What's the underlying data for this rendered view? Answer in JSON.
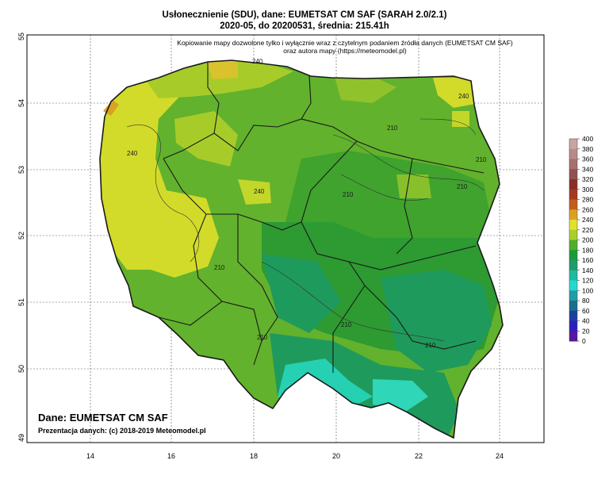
{
  "title": {
    "line1": "Usłonecznienie (SDU), dane: EUMETSAT CM SAF (SARAH 2.0/2.1)",
    "line2": "2020-05, do 20200531, średnia: 215.41h"
  },
  "notice": {
    "line1": "Kopiowanie mapy dozwolone tylko i wyłącznie wraz z czytelnym podaniem źródła danych (EUMETSAT CM SAF)",
    "line2": "oraz autora mapy (https://meteomodel.pl)"
  },
  "source": {
    "line1": "Dane: EUMETSAT CM SAF",
    "line2": "Prezentacja danych: (c) 2018-2019 Meteomodel.pl"
  },
  "axes": {
    "lon_ticks": [
      "14",
      "16",
      "18",
      "20",
      "22",
      "24"
    ],
    "lat_ticks": [
      "55",
      "54",
      "53",
      "52",
      "51",
      "50",
      "49"
    ],
    "grid": true
  },
  "colorbar": {
    "unit": "h",
    "ticks": [
      "400",
      "380",
      "360",
      "340",
      "320",
      "300",
      "280",
      "260",
      "240",
      "220",
      "200",
      "180",
      "160",
      "140",
      "120",
      "100",
      "80",
      "60",
      "40",
      "20",
      "0"
    ],
    "colors": [
      "#c9a4a4",
      "#b88a8a",
      "#a76f6f",
      "#935252",
      "#8b2e2a",
      "#a53a22",
      "#c45d1a",
      "#d9a222",
      "#e2e02e",
      "#a9cf28",
      "#4fae2a",
      "#1e9a3a",
      "#1f9b6a",
      "#1fb9a2",
      "#22d9cf",
      "#1e9ea4",
      "#1a6f8f",
      "#1c3f9f",
      "#2a1fbf",
      "#5b12a0"
    ]
  },
  "contour_labels": [
    "240",
    "240",
    "240",
    "240",
    "210",
    "210",
    "210",
    "210",
    "210",
    "210",
    "210",
    "210"
  ],
  "colors": {
    "yellow": "#d2db29",
    "yellow_green": "#a7cc2a",
    "green": "#62b22d",
    "dark_green": "#2d9a32",
    "teal": "#1f9a5d",
    "cyan": "#25d1b2",
    "orange": "#d9a222",
    "border": "#1a1a1a"
  }
}
